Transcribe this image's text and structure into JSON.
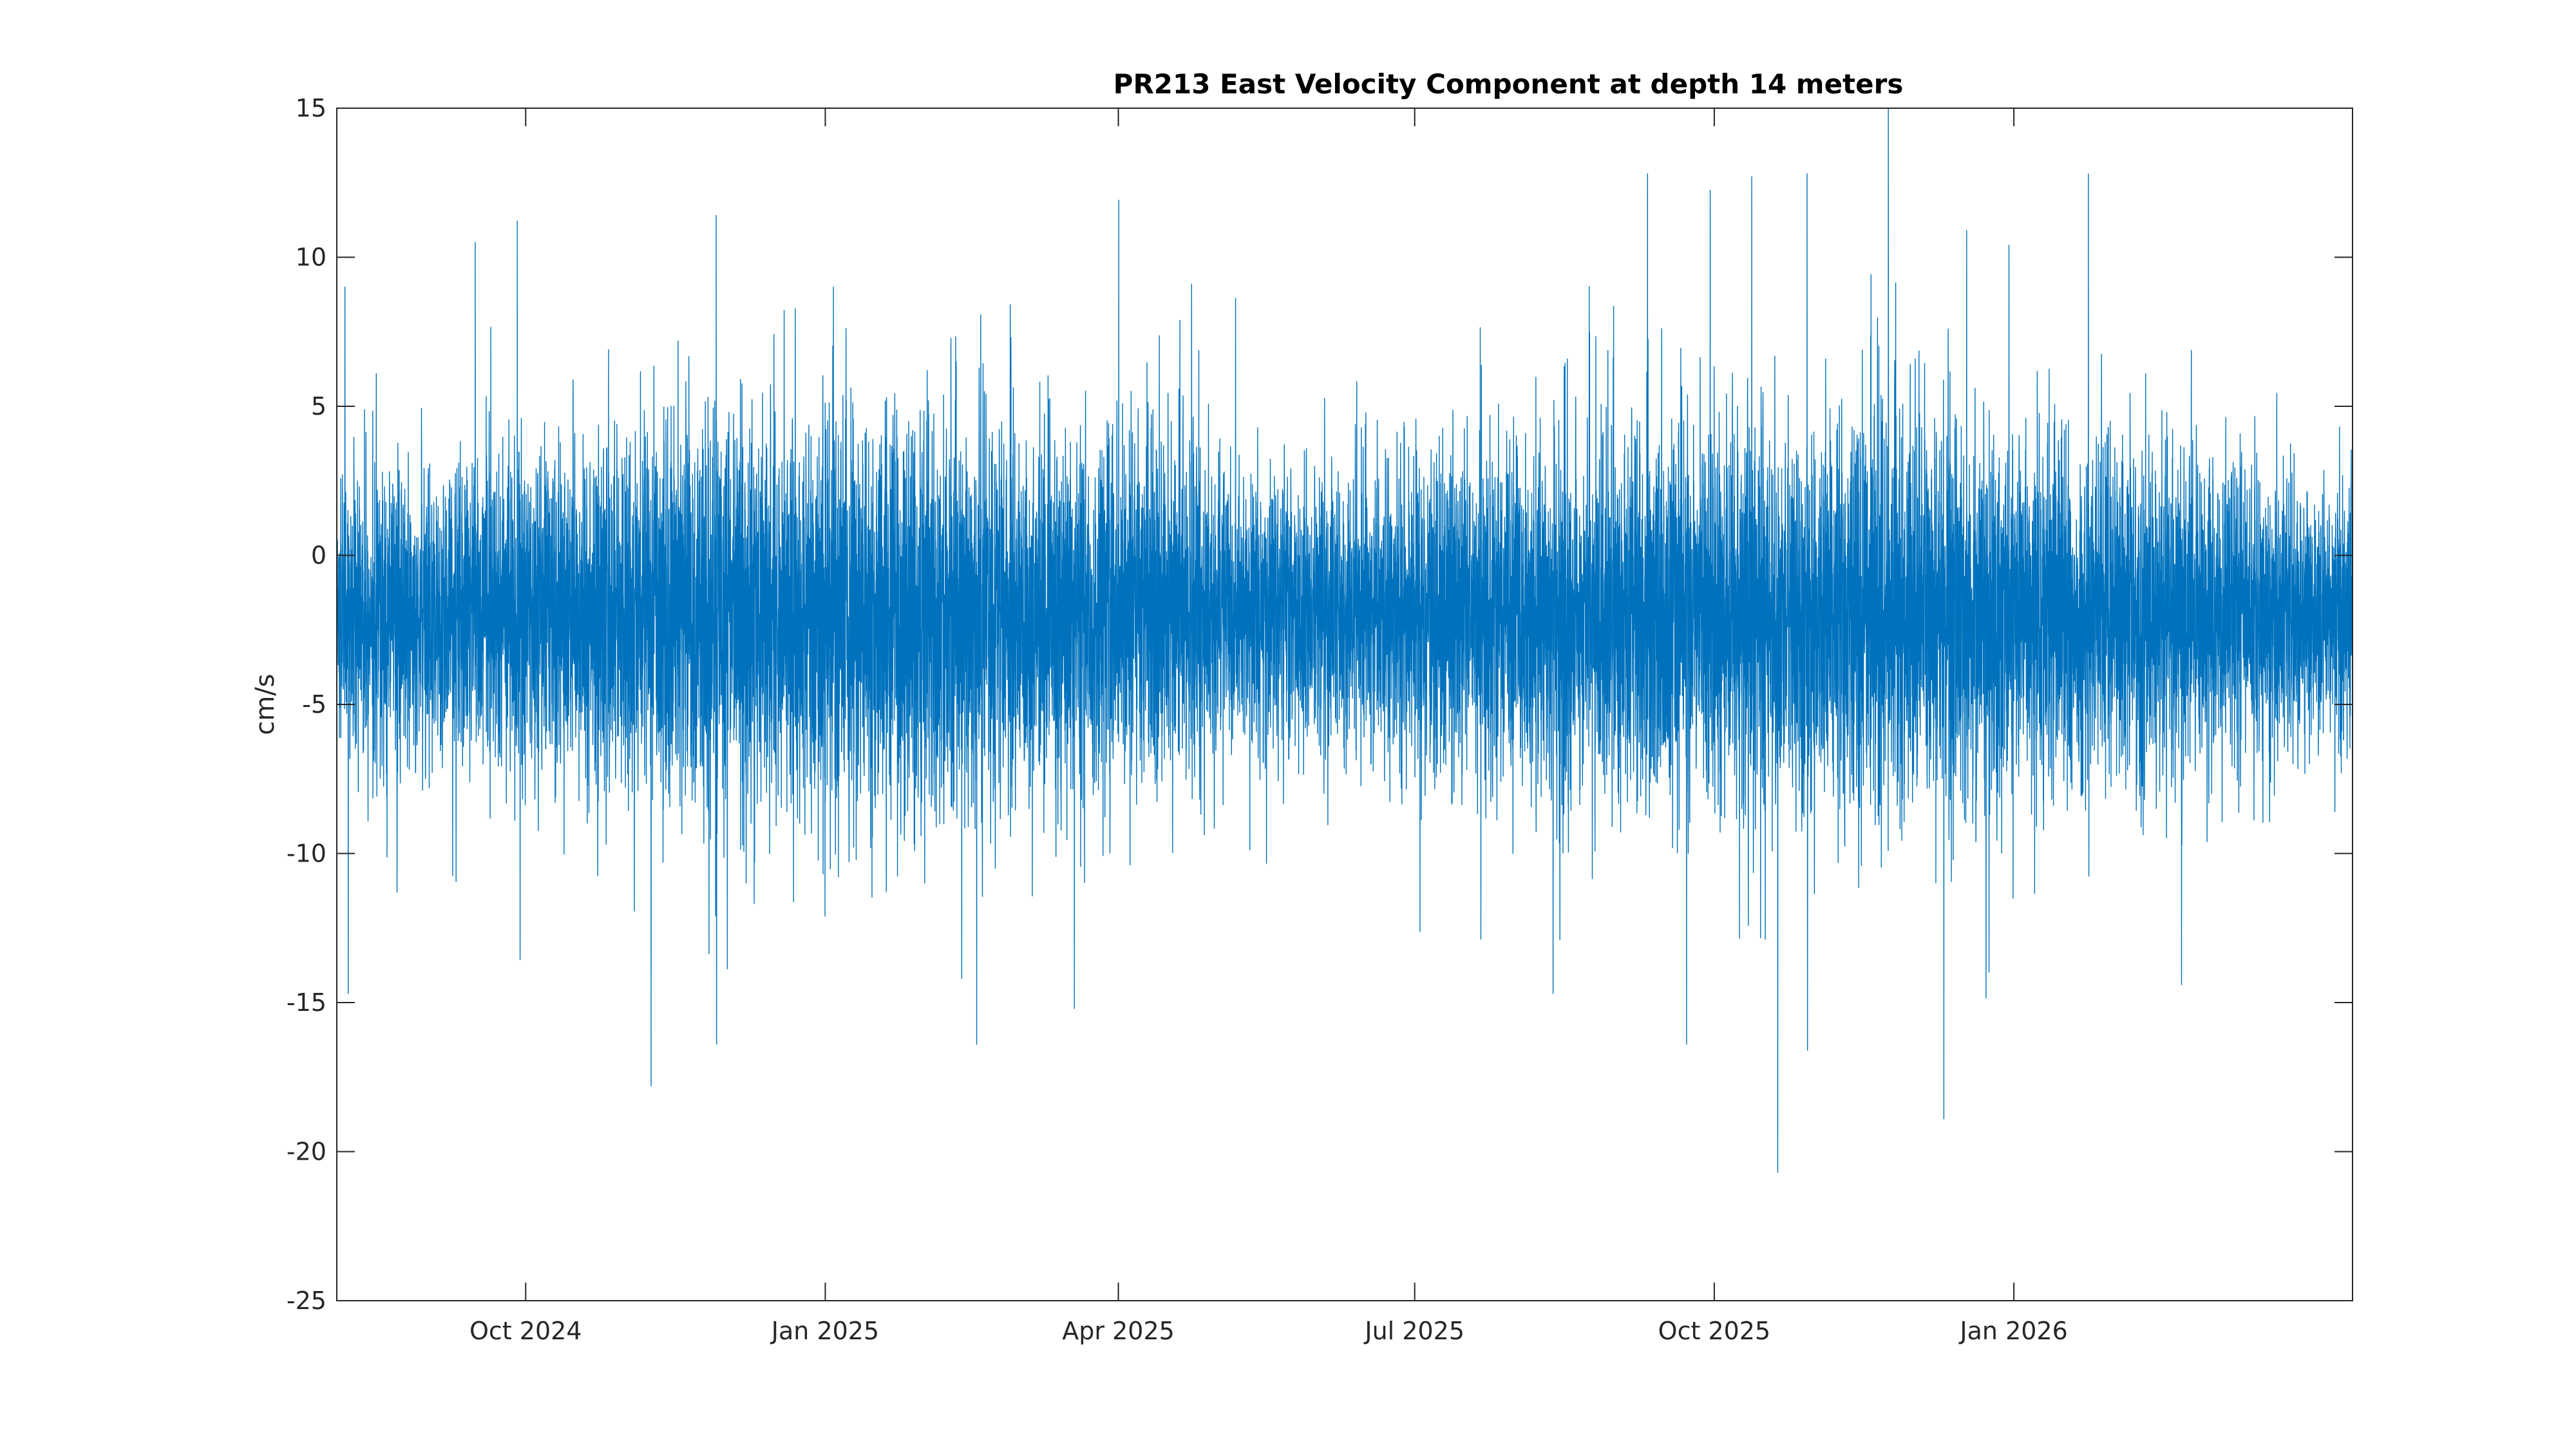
{
  "chart_data": {
    "type": "line",
    "title": "PR213 East Velocity Component at depth 14 meters",
    "xlabel": "",
    "ylabel": "cm/s",
    "x_range": [
      "2024-08-04",
      "2026-04-15"
    ],
    "ylim": [
      -25,
      15
    ],
    "y_ticks": [
      15,
      10,
      5,
      0,
      -5,
      -10,
      -15,
      -20,
      -25
    ],
    "x_ticks": [
      {
        "date": "2024-10-01",
        "label": "Oct 2024"
      },
      {
        "date": "2025-01-01",
        "label": "Jan 2025"
      },
      {
        "date": "2025-04-01",
        "label": "Apr 2025"
      },
      {
        "date": "2025-07-01",
        "label": "Jul 2025"
      },
      {
        "date": "2025-10-01",
        "label": "Oct 2025"
      },
      {
        "date": "2026-01-01",
        "label": "Jan 2026"
      }
    ],
    "grid": false,
    "series": [
      {
        "name": "",
        "color": "#0072bd",
        "sampling": "hourly",
        "mean": -2.0,
        "peaks": [
          {
            "date": "2024-08-06",
            "value": 9.0
          },
          {
            "date": "2024-08-07",
            "value": -14.7
          },
          {
            "date": "2024-09-15",
            "value": 10.5
          },
          {
            "date": "2024-11-08",
            "value": -17.8
          },
          {
            "date": "2024-11-28",
            "value": 11.4
          },
          {
            "date": "2024-11-28",
            "value": -16.4
          },
          {
            "date": "2025-01-03",
            "value": 9.0
          },
          {
            "date": "2025-02-16",
            "value": -16.4
          },
          {
            "date": "2025-03-18",
            "value": -15.2
          },
          {
            "date": "2025-04-23",
            "value": 9.1
          },
          {
            "date": "2025-08-12",
            "value": -14.7
          },
          {
            "date": "2025-09-10",
            "value": 12.8
          },
          {
            "date": "2025-09-22",
            "value": -16.4
          },
          {
            "date": "2025-10-12",
            "value": 12.7
          },
          {
            "date": "2025-10-20",
            "value": -20.7
          },
          {
            "date": "2025-10-29",
            "value": 12.8
          },
          {
            "date": "2025-10-29",
            "value": -16.6
          },
          {
            "date": "2025-12-10",
            "value": -18.9
          },
          {
            "date": "2025-12-17",
            "value": 10.9
          },
          {
            "date": "2025-12-30",
            "value": 10.4
          },
          {
            "date": "2026-02-21",
            "value": -14.4
          }
        ]
      }
    ]
  }
}
